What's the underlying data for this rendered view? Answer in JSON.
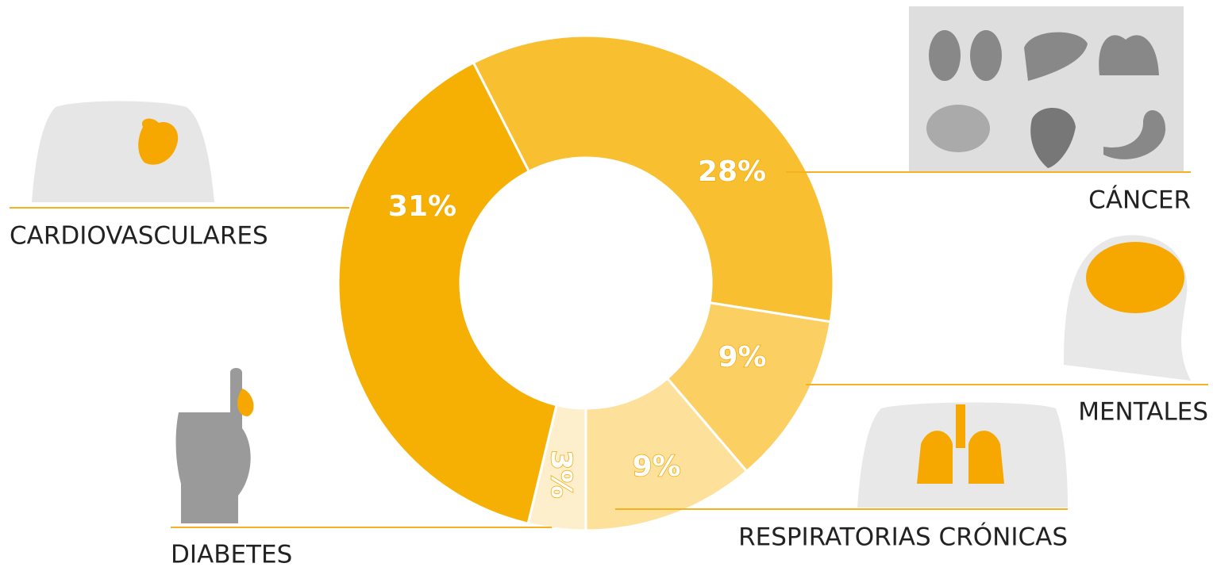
{
  "chart_data": {
    "type": "donut",
    "categories": [
      "CÁNCER",
      "MENTALES",
      "RESPIRATORIAS CRÓNICAS",
      "DIABETES",
      "CARDIOVASCULARES"
    ],
    "values": [
      28,
      9,
      9,
      3,
      31
    ],
    "value_labels": [
      "28%",
      "9%",
      "9%",
      "3%",
      "31%"
    ],
    "colors": [
      "#f8bf31",
      "#fbcf62",
      "#fde09a",
      "#fdefcc",
      "#f6b004"
    ]
  }
}
